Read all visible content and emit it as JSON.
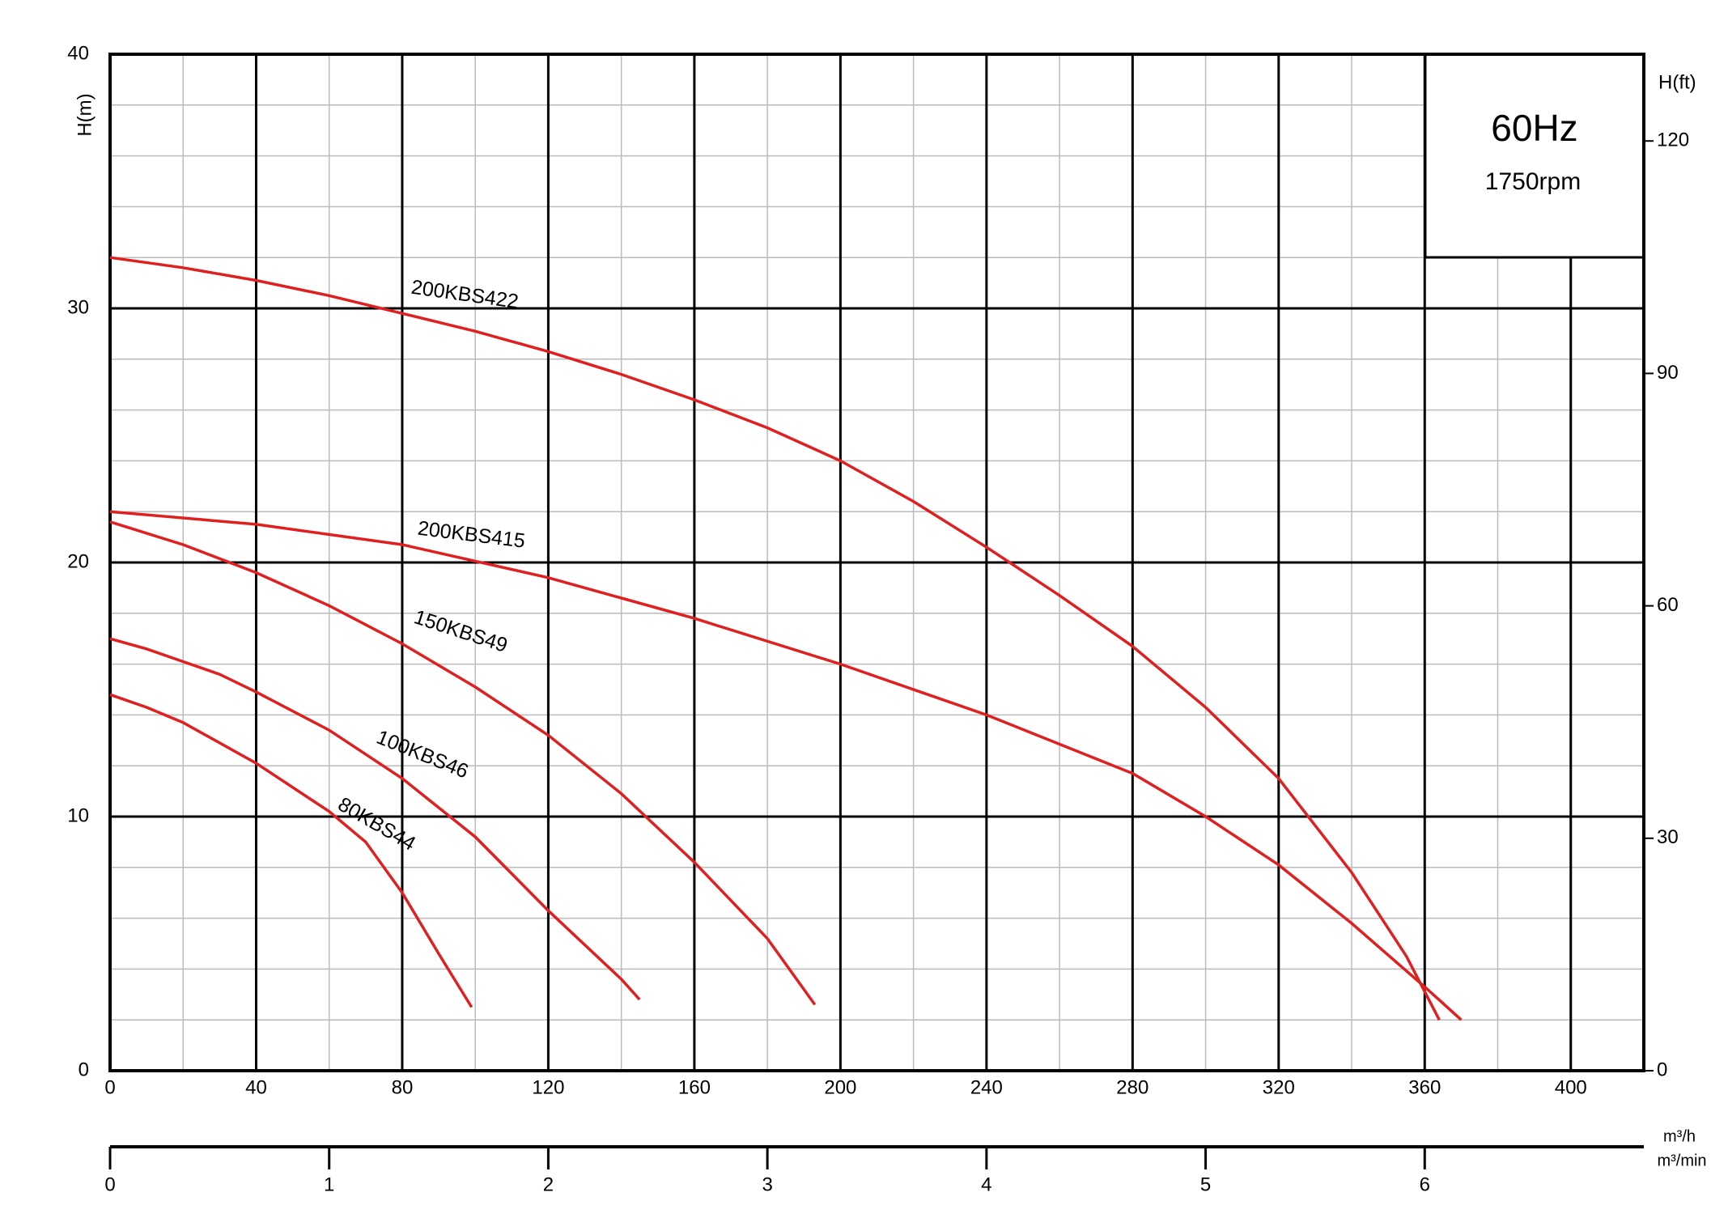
{
  "chart_data": {
    "type": "line",
    "xlabel": "m³/h",
    "x2label": "m³/min",
    "ylabel": "H(m)",
    "y2label": "H(ft)",
    "box_title": "60Hz",
    "box_subtitle": "1750rpm",
    "box_title_color": "#1010e0",
    "xlim": [
      0,
      420
    ],
    "xticks": [
      0,
      40,
      80,
      120,
      160,
      200,
      240,
      280,
      320,
      360,
      400
    ],
    "minor_xticks": [
      20,
      60,
      100,
      140,
      180,
      220,
      260,
      300,
      340,
      380
    ],
    "ylim": [
      0,
      40
    ],
    "yticks": [
      0,
      10,
      20,
      30,
      40
    ],
    "minor_yticks": [
      2,
      4,
      6,
      8,
      12,
      14,
      16,
      18,
      22,
      24,
      26,
      28,
      32,
      34,
      36,
      38
    ],
    "y2lim": [
      0,
      131.2
    ],
    "y2ticks": [
      0,
      30,
      60,
      90,
      120
    ],
    "x2lim": [
      0,
      7
    ],
    "x2ticks": [
      0,
      1,
      2,
      3,
      4,
      5,
      6
    ],
    "grid": true,
    "series": [
      {
        "name": "200KBS422",
        "color": "#e02020",
        "x": [
          0,
          20,
          40,
          60,
          80,
          100,
          120,
          140,
          160,
          180,
          200,
          220,
          240,
          260,
          280,
          300,
          320,
          340,
          355,
          364
        ],
        "values": [
          32,
          31.6,
          31.1,
          30.5,
          29.8,
          29.1,
          28.3,
          27.4,
          26.4,
          25.3,
          24,
          22.4,
          20.6,
          18.7,
          16.7,
          14.3,
          11.5,
          7.8,
          4.5,
          2
        ]
      },
      {
        "name": "200KBS415",
        "color": "#e02020",
        "x": [
          0,
          40,
          80,
          120,
          160,
          200,
          240,
          280,
          300,
          320,
          340,
          360,
          370
        ],
        "values": [
          22,
          21.5,
          20.7,
          19.4,
          17.8,
          16,
          14,
          11.7,
          10,
          8.1,
          5.8,
          3.3,
          2
        ]
      },
      {
        "name": "150KBS49",
        "color": "#e02020",
        "x": [
          0,
          20,
          40,
          60,
          80,
          100,
          120,
          140,
          160,
          180,
          193
        ],
        "values": [
          21.6,
          20.7,
          19.6,
          18.3,
          16.8,
          15.1,
          13.2,
          10.9,
          8.2,
          5.2,
          2.6
        ]
      },
      {
        "name": "100KBS46",
        "color": "#e02020",
        "x": [
          0,
          10,
          20,
          30,
          40,
          60,
          80,
          100,
          120,
          140,
          145
        ],
        "values": [
          17,
          16.6,
          16.1,
          15.6,
          14.9,
          13.4,
          11.5,
          9.2,
          6.3,
          3.6,
          2.8
        ]
      },
      {
        "name": "80KBS44",
        "color": "#e02020",
        "x": [
          0,
          10,
          20,
          40,
          60,
          70,
          80,
          90,
          99
        ],
        "values": [
          14.8,
          14.3,
          13.7,
          12.1,
          10.2,
          9,
          7,
          4.6,
          2.5
        ]
      }
    ]
  }
}
